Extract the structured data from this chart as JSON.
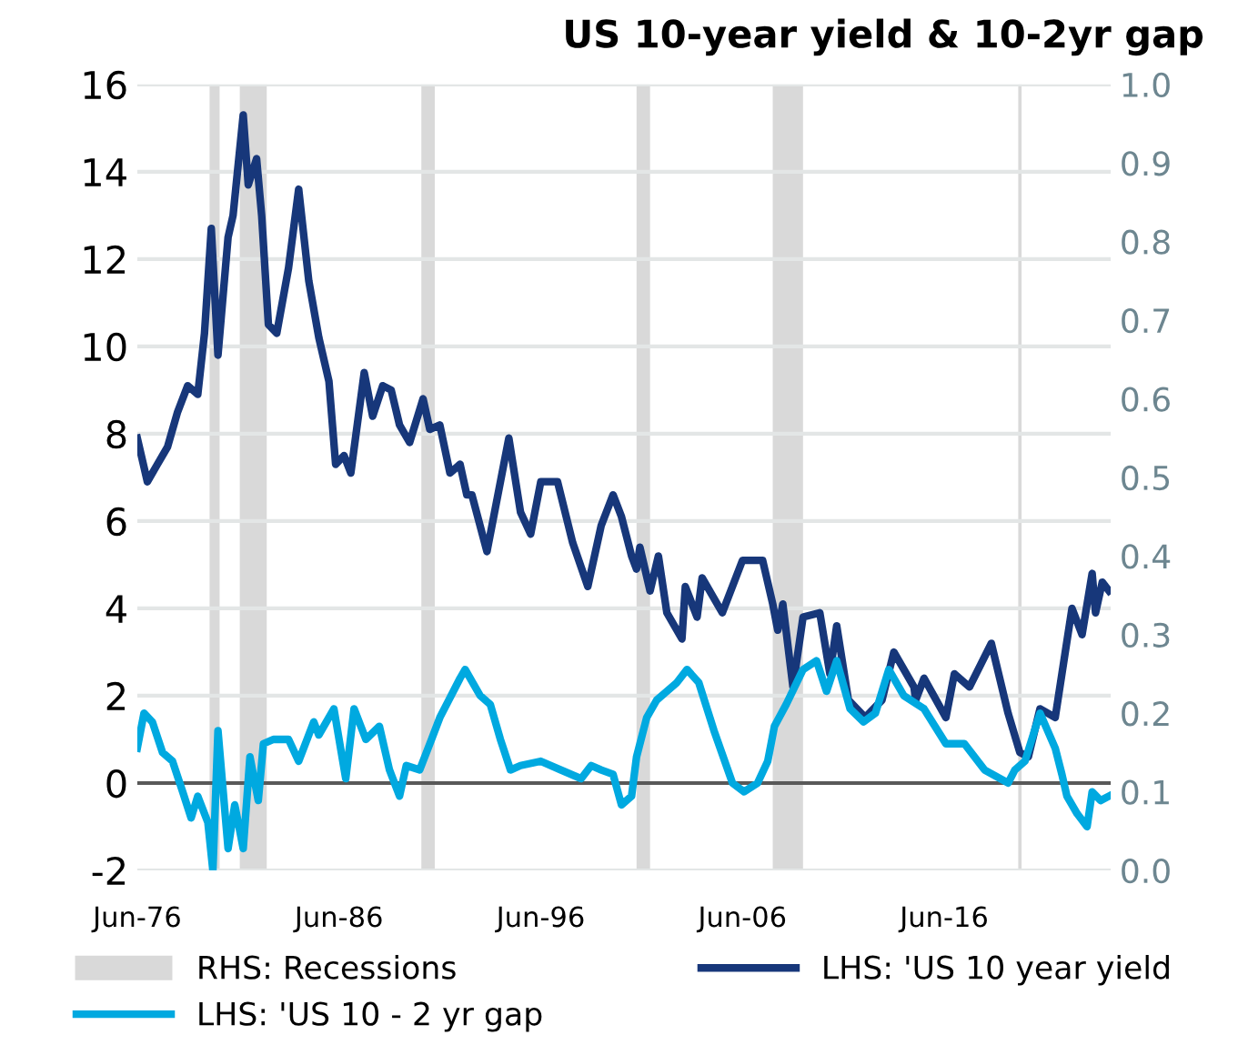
{
  "chart_data": {
    "type": "line",
    "title": "US 10-year yield & 10-2yr gap",
    "xlim": [
      "1976-06",
      "2024-09"
    ],
    "xticks": [
      {
        "value": "1976-06",
        "label": "Jun-76"
      },
      {
        "value": "1986-06",
        "label": "Jun-86"
      },
      {
        "value": "1996-06",
        "label": "Jun-96"
      },
      {
        "value": "2006-06",
        "label": "Jun-06"
      },
      {
        "value": "2016-06",
        "label": "Jun-16"
      }
    ],
    "ylim": [
      -2,
      16
    ],
    "yticks": [
      -2,
      0,
      2,
      4,
      6,
      8,
      10,
      12,
      14,
      16
    ],
    "y2lim": [
      0,
      1
    ],
    "y2ticks": [
      {
        "value": 0,
        "label": "0.0"
      },
      0.1,
      0.2,
      0.3,
      0.4,
      0.5,
      0.6,
      0.7,
      0.8,
      0.9,
      {
        "value": 1,
        "label": "1.0"
      }
    ],
    "grid": "y",
    "legend": "bottom",
    "ref_lines": [
      {
        "axis": "y",
        "value": 0,
        "color": "#595959"
      }
    ],
    "bands": [
      {
        "axis": "x",
        "from": "1980-01",
        "to": "1980-07",
        "label": "RHS: Recessions",
        "color": "#d9d9d9"
      },
      {
        "axis": "x",
        "from": "1981-07",
        "to": "1982-11",
        "color": "#d9d9d9"
      },
      {
        "axis": "x",
        "from": "1990-07",
        "to": "1991-03",
        "color": "#d9d9d9"
      },
      {
        "axis": "x",
        "from": "2001-03",
        "to": "2001-11",
        "color": "#d9d9d9"
      },
      {
        "axis": "x",
        "from": "2007-12",
        "to": "2009-06",
        "color": "#d9d9d9"
      },
      {
        "axis": "x",
        "from": "2020-02",
        "to": "2020-04",
        "color": "#d9d9d9"
      }
    ],
    "series": [
      {
        "name": "LHS: 'US 10 year yield",
        "color": "#17377a",
        "x": [
          "1976-06",
          "1976-12",
          "1977-06",
          "1977-12",
          "1978-06",
          "1978-12",
          "1979-06",
          "1979-10",
          "1980-02",
          "1980-06",
          "1980-12",
          "1981-03",
          "1981-09",
          "1981-12",
          "1982-05",
          "1982-08",
          "1982-12",
          "1983-05",
          "1983-12",
          "1984-06",
          "1984-12",
          "1985-06",
          "1985-12",
          "1986-04",
          "1986-09",
          "1987-01",
          "1987-09",
          "1988-02",
          "1988-08",
          "1989-01",
          "1989-06",
          "1989-12",
          "1990-08",
          "1990-12",
          "1991-06",
          "1991-12",
          "1992-06",
          "1992-10",
          "1993-01",
          "1993-10",
          "1994-11",
          "1995-06",
          "1995-12",
          "1996-06",
          "1997-04",
          "1998-01",
          "1998-10",
          "1999-06",
          "2000-01",
          "2000-06",
          "2000-12",
          "2001-03",
          "2001-05",
          "2001-11",
          "2002-04",
          "2002-09",
          "2003-06",
          "2003-08",
          "2004-03",
          "2004-06",
          "2005-06",
          "2006-06",
          "2007-06",
          "2007-12",
          "2008-03",
          "2008-06",
          "2008-12",
          "2009-06",
          "2010-04",
          "2010-10",
          "2011-02",
          "2011-09",
          "2012-07",
          "2013-05",
          "2013-12",
          "2014-12",
          "2015-01",
          "2015-06",
          "2016-07",
          "2016-12",
          "2017-09",
          "2018-10",
          "2019-08",
          "2020-03",
          "2020-08",
          "2021-03",
          "2021-12",
          "2022-06",
          "2022-10",
          "2023-04",
          "2023-10",
          "2023-12",
          "2024-04",
          "2024-08"
        ],
        "values": [
          7.9,
          6.9,
          7.3,
          7.7,
          8.5,
          9.1,
          8.9,
          10.3,
          12.7,
          9.8,
          12.5,
          13.0,
          15.3,
          13.7,
          14.3,
          13.0,
          10.5,
          10.3,
          11.8,
          13.6,
          11.5,
          10.2,
          9.2,
          7.3,
          7.5,
          7.1,
          9.4,
          8.4,
          9.1,
          9.0,
          8.2,
          7.8,
          8.8,
          8.1,
          8.2,
          7.1,
          7.3,
          6.6,
          6.6,
          5.3,
          7.9,
          6.2,
          5.7,
          6.9,
          6.9,
          5.5,
          4.5,
          5.9,
          6.6,
          6.1,
          5.2,
          4.9,
          5.4,
          4.4,
          5.2,
          3.9,
          3.3,
          4.5,
          3.8,
          4.7,
          3.9,
          5.1,
          5.1,
          4.1,
          3.5,
          4.1,
          2.2,
          3.8,
          3.9,
          2.5,
          3.6,
          1.9,
          1.5,
          1.9,
          3.0,
          2.2,
          1.9,
          2.4,
          1.5,
          2.5,
          2.2,
          3.2,
          1.6,
          0.7,
          0.6,
          1.7,
          1.5,
          3.0,
          4.0,
          3.4,
          4.8,
          3.9,
          4.6,
          4.4
        ]
      },
      {
        "name": "LHS: 'US 10 - 2 yr gap",
        "color": "#00a9e0",
        "x": [
          "1976-06",
          "1976-10",
          "1977-03",
          "1977-09",
          "1978-03",
          "1978-09",
          "1979-02",
          "1979-06",
          "1979-12",
          "1980-03",
          "1980-06",
          "1980-08",
          "1980-12",
          "1981-04",
          "1981-09",
          "1982-01",
          "1982-06",
          "1982-09",
          "1983-03",
          "1983-12",
          "1984-06",
          "1985-03",
          "1985-06",
          "1986-03",
          "1986-10",
          "1987-03",
          "1987-10",
          "1988-06",
          "1988-12",
          "1989-06",
          "1989-10",
          "1990-06",
          "1991-01",
          "1991-06",
          "1992-06",
          "1992-09",
          "1993-06",
          "1993-12",
          "1994-06",
          "1994-12",
          "1995-06",
          "1996-06",
          "1997-06",
          "1998-06",
          "1998-12",
          "1999-06",
          "2000-01",
          "2000-06",
          "2000-12",
          "2001-03",
          "2001-09",
          "2002-03",
          "2003-03",
          "2003-09",
          "2004-04",
          "2005-01",
          "2005-12",
          "2006-07",
          "2007-03",
          "2007-09",
          "2008-01",
          "2008-08",
          "2009-06",
          "2010-02",
          "2010-08",
          "2011-02",
          "2011-10",
          "2012-06",
          "2013-01",
          "2013-09",
          "2014-06",
          "2015-06",
          "2016-07",
          "2017-06",
          "2018-06",
          "2019-08",
          "2019-12",
          "2020-06",
          "2021-03",
          "2021-12",
          "2022-04",
          "2022-07",
          "2023-01",
          "2023-07",
          "2023-10",
          "2024-03",
          "2024-08"
        ],
        "values": [
          0.8,
          1.6,
          1.4,
          0.7,
          0.5,
          -0.2,
          -0.8,
          -0.3,
          -0.9,
          -2.0,
          1.2,
          0.3,
          -1.5,
          -0.5,
          -1.5,
          0.6,
          -0.4,
          0.9,
          1.0,
          1.0,
          0.5,
          1.4,
          1.1,
          1.7,
          0.1,
          1.7,
          1.0,
          1.3,
          0.3,
          -0.3,
          0.4,
          0.3,
          1.0,
          1.5,
          2.4,
          2.6,
          2.0,
          1.8,
          1.0,
          0.3,
          0.4,
          0.5,
          0.3,
          0.1,
          0.4,
          0.3,
          0.2,
          -0.5,
          -0.3,
          0.6,
          1.5,
          1.9,
          2.3,
          2.6,
          2.3,
          1.2,
          0.0,
          -0.2,
          0.0,
          0.5,
          1.3,
          1.8,
          2.6,
          2.8,
          2.1,
          2.8,
          1.7,
          1.4,
          1.6,
          2.6,
          2.0,
          1.7,
          0.9,
          0.9,
          0.3,
          0.0,
          0.3,
          0.5,
          1.6,
          0.8,
          0.2,
          -0.3,
          -0.7,
          -1.0,
          -0.2,
          -0.4,
          -0.3
        ]
      }
    ]
  }
}
